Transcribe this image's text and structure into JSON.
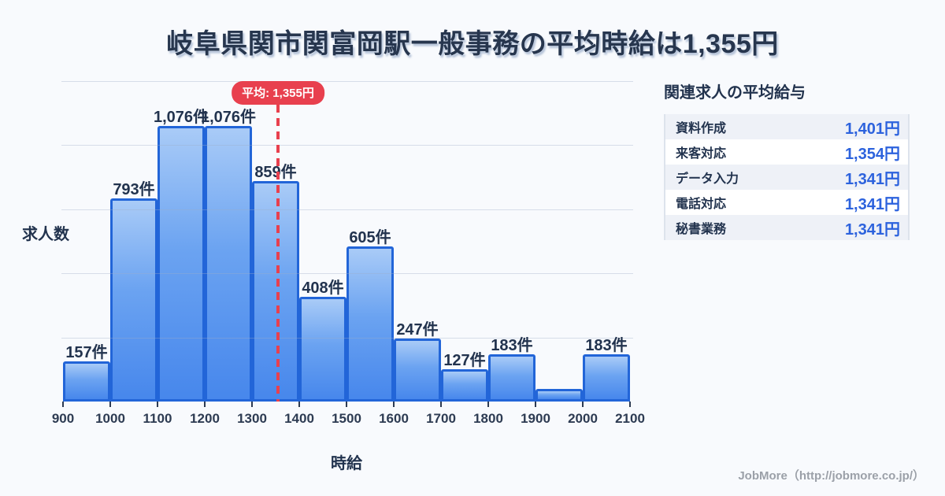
{
  "title": "岐阜県関市関富岡駅一般事務の平均時給は1,355円",
  "chart": {
    "y_axis_label": "求人数",
    "x_axis_label": "時給"
  },
  "chart_data": {
    "type": "bar",
    "title": "岐阜県関市関富岡駅一般事務の平均時給は1,355円",
    "xlabel": "時給",
    "ylabel": "求人数",
    "x_min": 900,
    "x_max": 2100,
    "bin_width": 100,
    "x_ticks": [
      "900",
      "1000",
      "1100",
      "1200",
      "1300",
      "1400",
      "1500",
      "1600",
      "1700",
      "1800",
      "1900",
      "2000",
      "2100"
    ],
    "categories": [
      "900-1000",
      "1000-1100",
      "1100-1200",
      "1200-1300",
      "1300-1400",
      "1400-1500",
      "1500-1600",
      "1600-1700",
      "1700-1800",
      "1800-1900",
      "1900-2000",
      "2000-2100"
    ],
    "values": [
      157,
      793,
      1076,
      1076,
      859,
      408,
      605,
      247,
      127,
      183,
      50,
      183
    ],
    "bar_labels": [
      "157件",
      "793件",
      "1,076件",
      "1,076件",
      "859件",
      "408件",
      "605件",
      "247件",
      "127件",
      "183件",
      "",
      "183件"
    ],
    "average": 1355,
    "average_label": "平均: 1,355円",
    "ylim": [
      0,
      1250
    ],
    "grid_step": 250,
    "grid": "horizontal",
    "legend": "none",
    "colors": {
      "bar_fill_top": "#a9cbf7",
      "bar_fill_bottom": "#4787ec",
      "bar_border": "#2265d8",
      "average_red": "#e8404e",
      "title_navy": "#27364e",
      "value_blue": "#2c62dd",
      "background": "#f8fafd"
    }
  },
  "sidebar": {
    "heading": "関連求人の平均給与",
    "rows": [
      {
        "label": "資料作成",
        "value": "1,401円"
      },
      {
        "label": "来客対応",
        "value": "1,354円"
      },
      {
        "label": "データ入力",
        "value": "1,341円"
      },
      {
        "label": "電話対応",
        "value": "1,341円"
      },
      {
        "label": "秘書業務",
        "value": "1,341円"
      }
    ]
  },
  "footer": {
    "credit": "JobMore（http://jobmore.co.jp/）"
  }
}
